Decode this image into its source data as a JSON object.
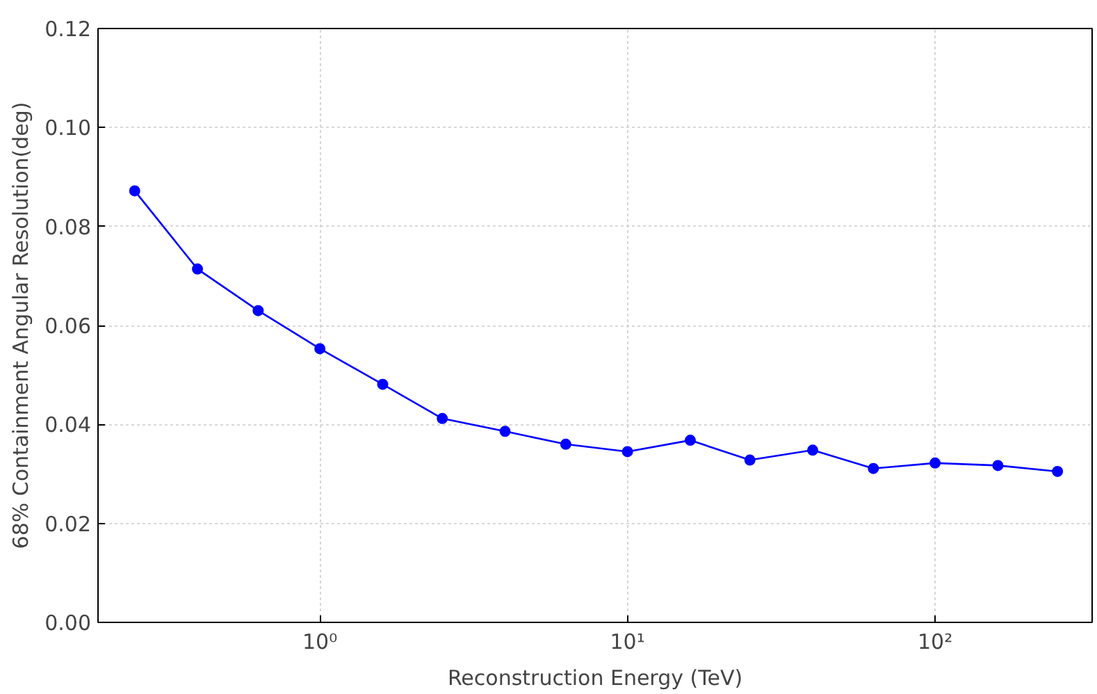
{
  "chart_data": {
    "type": "line",
    "xlabel": "Reconstruction Energy (TeV)",
    "ylabel": "68% Containment Angular Resolution(deg)",
    "x": [
      0.25,
      0.4,
      0.63,
      1.0,
      1.6,
      2.5,
      4.0,
      6.3,
      10,
      16,
      25,
      40,
      63,
      100,
      160,
      250
    ],
    "series": [
      {
        "color": "#0000ff",
        "values": [
          0.0872,
          0.0714,
          0.063,
          0.0553,
          0.0481,
          0.0412,
          0.0386,
          0.036,
          0.0345,
          0.0368,
          0.0328,
          0.0348,
          0.0311,
          0.0322,
          0.0317,
          0.0305
        ]
      }
    ],
    "log": "x",
    "xlim": [
      0.19,
      324
    ],
    "ylim": [
      0,
      0.12
    ],
    "xticks": [
      {
        "value": 1,
        "label": "10⁰"
      },
      {
        "value": 10,
        "label": "10¹"
      },
      {
        "value": 100,
        "label": "10²"
      }
    ],
    "yticks": [
      {
        "value": 0,
        "label": "0.00"
      },
      {
        "value": 0.02,
        "label": "0.02"
      },
      {
        "value": 0.04,
        "label": "0.04"
      },
      {
        "value": 0.06,
        "label": "0.06"
      },
      {
        "value": 0.08,
        "label": "0.08"
      },
      {
        "value": 0.1,
        "label": "0.10"
      },
      {
        "value": 0.12,
        "label": "0.12"
      }
    ],
    "grid": true,
    "marker": "circle",
    "line_style": "solid"
  }
}
